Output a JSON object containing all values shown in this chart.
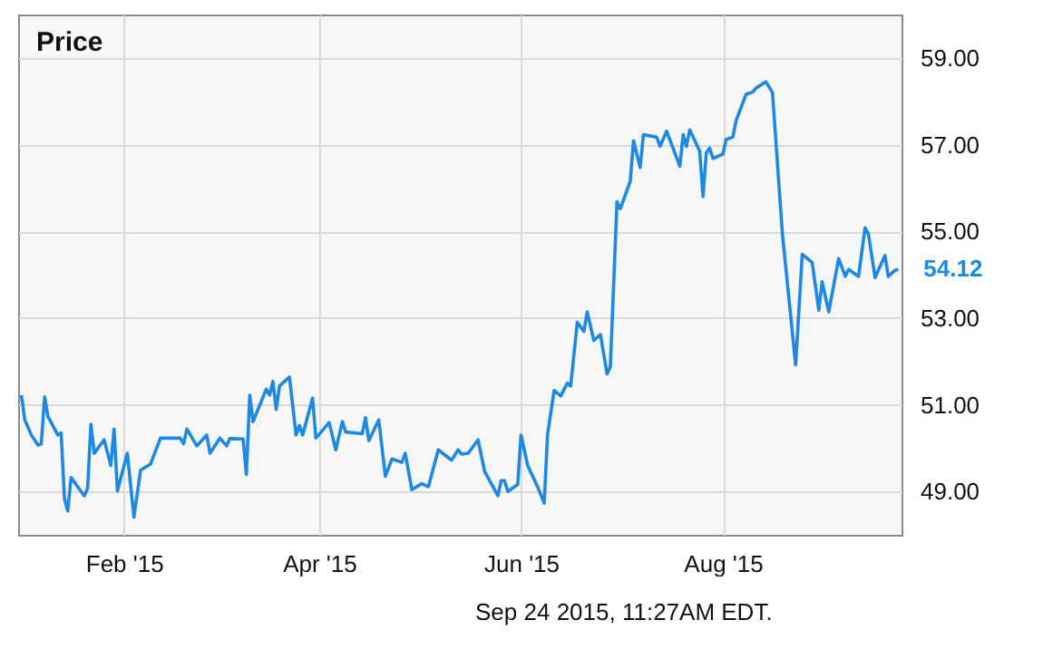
{
  "chart_data": {
    "type": "line",
    "title": "Price",
    "annotations": [
      {
        "text": "54.12",
        "x": "2015-09-23",
        "y": 54.12
      },
      "Sep 24 2015, 11:27AM EDT."
    ],
    "x": [
      "2015-01-01",
      "2015-01-02",
      "2015-01-04",
      "2015-01-06",
      "2015-01-07",
      "2015-01-08",
      "2015-01-09",
      "2015-01-12",
      "2015-01-13",
      "2015-01-14",
      "2015-01-15",
      "2015-01-16",
      "2015-01-20",
      "2015-01-21",
      "2015-01-22",
      "2015-01-23",
      "2015-01-26",
      "2015-01-28",
      "2015-01-29",
      "2015-01-30",
      "2015-02-02",
      "2015-02-04",
      "2015-02-06",
      "2015-02-09",
      "2015-02-12",
      "2015-02-18",
      "2015-02-19",
      "2015-02-20",
      "2015-02-23",
      "2015-02-26",
      "2015-02-27",
      "2015-03-02",
      "2015-03-04",
      "2015-03-05",
      "2015-03-09",
      "2015-03-10",
      "2015-03-11",
      "2015-03-12",
      "2015-03-16",
      "2015-03-17",
      "2015-03-18",
      "2015-03-19",
      "2015-03-20",
      "2015-03-23",
      "2015-03-25",
      "2015-03-26",
      "2015-03-27",
      "2015-03-30",
      "2015-03-31",
      "2015-04-04",
      "2015-04-06",
      "2015-04-08",
      "2015-04-09",
      "2015-04-14",
      "2015-04-15",
      "2015-04-16",
      "2015-04-19",
      "2015-04-21",
      "2015-04-23",
      "2015-04-26",
      "2015-04-27",
      "2015-04-29",
      "2015-05-02",
      "2015-05-04",
      "2015-05-07",
      "2015-05-11",
      "2015-05-13",
      "2015-05-14",
      "2015-05-16",
      "2015-05-19",
      "2015-05-21",
      "2015-05-25",
      "2015-05-26",
      "2015-05-27",
      "2015-05-28",
      "2015-05-31",
      "2015-06-01",
      "2015-06-03",
      "2015-06-06",
      "2015-06-08",
      "2015-06-09",
      "2015-06-11",
      "2015-06-13",
      "2015-06-15",
      "2015-06-16",
      "2015-06-18",
      "2015-06-20",
      "2015-06-21",
      "2015-06-23",
      "2015-06-25",
      "2015-06-27",
      "2015-06-28",
      "2015-06-30",
      "2015-07-01",
      "2015-07-04",
      "2015-07-05",
      "2015-07-07",
      "2015-07-08",
      "2015-07-12",
      "2015-07-13",
      "2015-07-15",
      "2015-07-19",
      "2015-07-20",
      "2015-07-21",
      "2015-07-22",
      "2015-07-25",
      "2015-07-26",
      "2015-07-27",
      "2015-07-28",
      "2015-07-29",
      "2015-08-01",
      "2015-08-02",
      "2015-08-04",
      "2015-08-05",
      "2015-08-08",
      "2015-08-10",
      "2015-08-11",
      "2015-08-14",
      "2015-08-16",
      "2015-08-19",
      "2015-08-23",
      "2015-08-25",
      "2015-08-28",
      "2015-08-30",
      "2015-08-31",
      "2015-09-02",
      "2015-09-05",
      "2015-09-07",
      "2015-09-08",
      "2015-09-11",
      "2015-09-13",
      "2015-09-14",
      "2015-09-16",
      "2015-09-19",
      "2015-09-20",
      "2015-09-21",
      "2015-09-22",
      "2015-09-23"
    ],
    "series": [
      {
        "color": "#1e88e5",
        "values": [
          51.22,
          50.65,
          50.3,
          50.07,
          50.1,
          51.18,
          50.73,
          50.3,
          50.35,
          48.83,
          48.55,
          49.32,
          48.9,
          49.07,
          50.55,
          49.88,
          50.19,
          49.6,
          50.44,
          49.01,
          49.88,
          48.41,
          49.49,
          49.63,
          50.23,
          50.23,
          50.1,
          50.44,
          50.05,
          50.3,
          49.88,
          50.23,
          50.05,
          50.22,
          50.21,
          49.39,
          51.22,
          50.61,
          51.36,
          51.22,
          51.54,
          50.89,
          51.43,
          51.64,
          50.3,
          50.52,
          50.3,
          51.15,
          50.23,
          50.59,
          49.96,
          50.61,
          50.37,
          50.33,
          50.7,
          50.17,
          50.65,
          49.35,
          49.75,
          49.67,
          49.88,
          49.04,
          49.18,
          49.11,
          49.96,
          49.72,
          49.96,
          49.86,
          49.88,
          50.19,
          49.46,
          48.9,
          49.25,
          49.25,
          49.0,
          49.16,
          50.3,
          49.6,
          49.11,
          48.73,
          50.3,
          51.33,
          51.2,
          51.5,
          51.43,
          52.9,
          52.69,
          53.14,
          52.48,
          52.62,
          51.71,
          51.88,
          55.68,
          55.52,
          56.15,
          57.09,
          56.47,
          57.23,
          57.17,
          56.96,
          57.31,
          56.5,
          57.23,
          56.96,
          57.34,
          56.85,
          55.8,
          56.81,
          56.92,
          56.68,
          56.78,
          57.12,
          57.17,
          57.55,
          58.16,
          58.21,
          58.3,
          58.45,
          58.2,
          54.94,
          51.92,
          54.47,
          54.28,
          53.18,
          53.84,
          53.14,
          54.37,
          53.96,
          54.12,
          53.96,
          55.08,
          54.94,
          53.93,
          54.44,
          53.96,
          54.03,
          54.1,
          54.12
        ]
      }
    ],
    "xlim": [
      "2014-12-31",
      "2015-09-24"
    ],
    "xticks": [
      {
        "value": "2015-02-01",
        "label": "Feb '15"
      },
      {
        "value": "2015-04-01",
        "label": "Apr '15"
      },
      {
        "value": "2015-06-01",
        "label": "Jun '15"
      },
      {
        "value": "2015-08-01",
        "label": "Aug '15"
      }
    ],
    "ylim": [
      48,
      60
    ],
    "yticks": [
      {
        "value": 49,
        "label": "49.00"
      },
      {
        "value": 51,
        "label": "51.00"
      },
      {
        "value": 53,
        "label": "53.00"
      },
      {
        "value": 55,
        "label": "55.00"
      },
      {
        "value": 57,
        "label": "57.00"
      },
      {
        "value": 59,
        "label": "59.00"
      }
    ],
    "grid": true,
    "marker": "none",
    "line_style": "solid"
  }
}
